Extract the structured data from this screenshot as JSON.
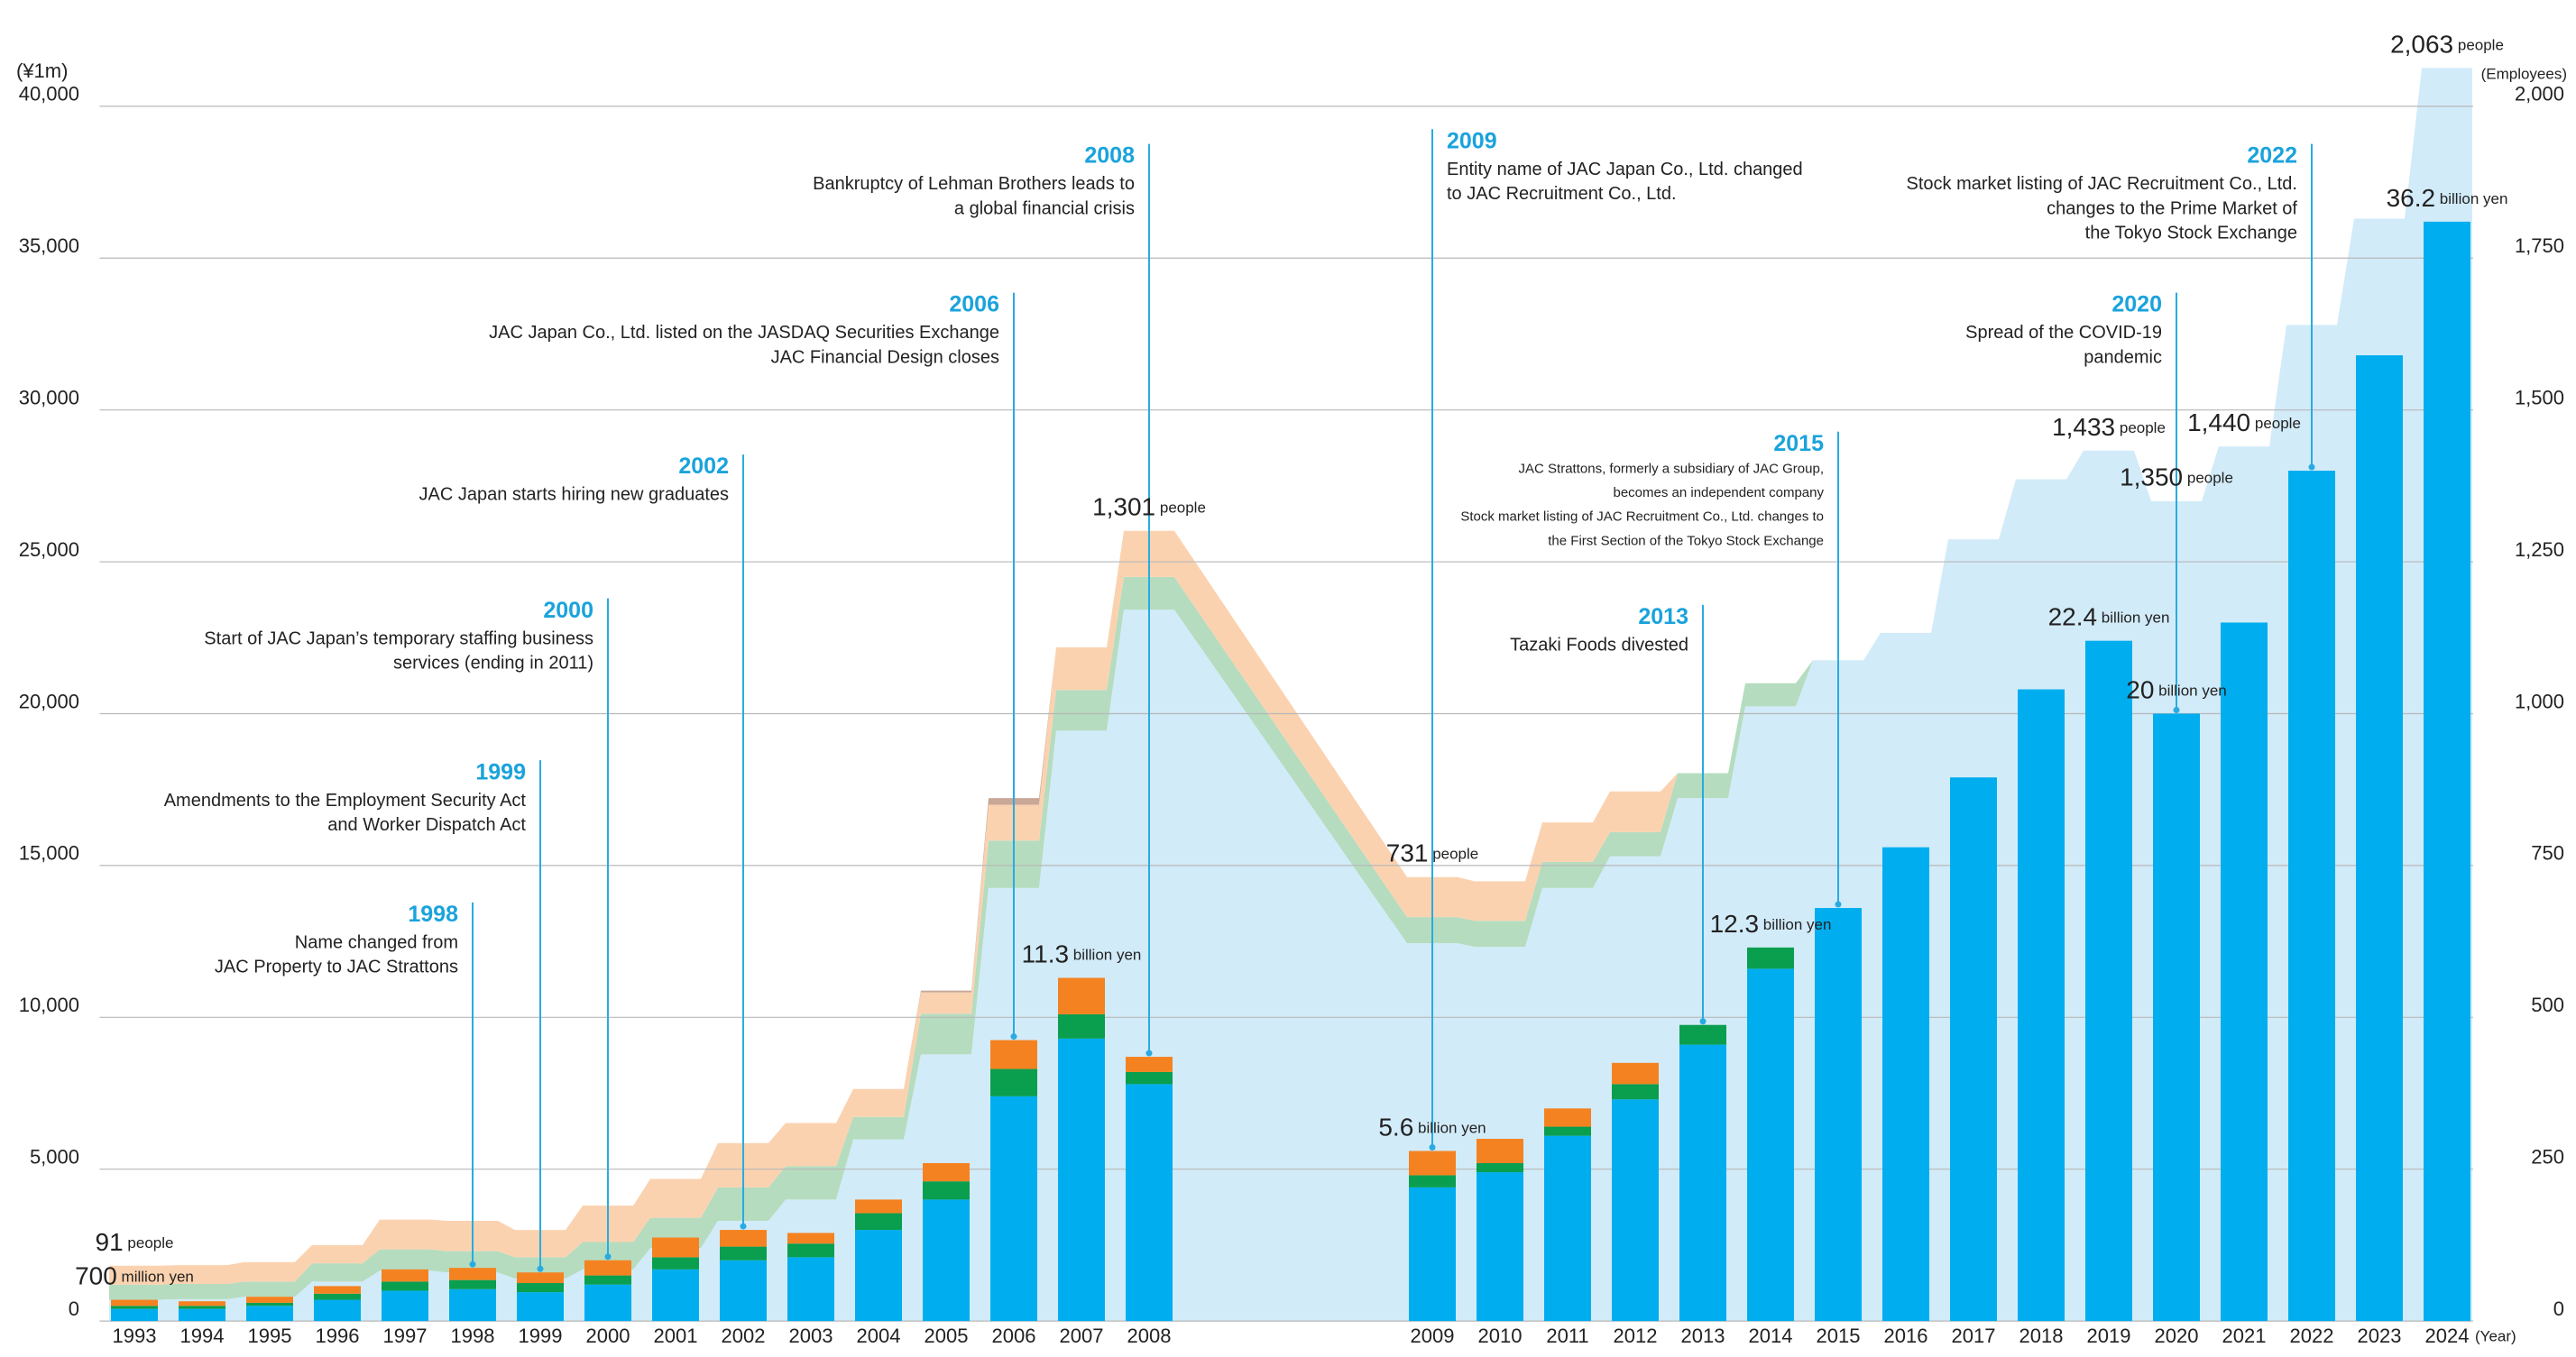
{
  "chart_data": {
    "type": "bar",
    "y_unit": "(¥1m)",
    "y2_unit": "(Employees)",
    "x_unit": "(Year)",
    "categories": [
      "1993",
      "1994",
      "1995",
      "1996",
      "1997",
      "1998",
      "1999",
      "2000",
      "2001",
      "2002",
      "2003",
      "2004",
      "2005",
      "2006",
      "2007",
      "2008",
      "2009",
      "2010",
      "2011",
      "2012",
      "2013",
      "2014",
      "2015",
      "2016",
      "2017",
      "2018",
      "2019",
      "2020",
      "2021",
      "2022",
      "2023",
      "2024"
    ],
    "series": [
      {
        "type": "bar",
        "color": "#00aeef",
        "values": [
          400,
          400,
          500,
          700,
          1000,
          1050,
          950,
          1200,
          1700,
          2000,
          2100,
          3000,
          4000,
          7400,
          9300,
          7800,
          4400,
          4900,
          6100,
          7300,
          9100,
          11600,
          13600,
          15600,
          17900,
          20800,
          22400,
          20000,
          23000,
          28000,
          31800,
          36200
        ]
      },
      {
        "type": "bar",
        "color": "#0a9e4f",
        "values": [
          100,
          100,
          100,
          200,
          300,
          300,
          300,
          300,
          400,
          450,
          450,
          550,
          600,
          900,
          800,
          400,
          400,
          300,
          300,
          500,
          650,
          700,
          0,
          0,
          0,
          0,
          0,
          0,
          0,
          0,
          0,
          0
        ]
      },
      {
        "type": "bar",
        "color": "#f58220",
        "values": [
          200,
          150,
          200,
          250,
          400,
          400,
          350,
          500,
          650,
          550,
          350,
          450,
          600,
          950,
          1200,
          500,
          800,
          800,
          600,
          700,
          0,
          0,
          0,
          0,
          0,
          0,
          0,
          0,
          0,
          0,
          0,
          0
        ]
      },
      {
        "type": "area",
        "axis": "y2",
        "color": "#d2ebf9",
        "values": [
          35,
          36,
          40,
          65,
          83,
          80,
          70,
          85,
          120,
          165,
          200,
          299,
          439,
          713,
          972,
          1171,
          622,
          616,
          713,
          765,
          861,
          1012,
          1088,
          1133,
          1287,
          1386,
          1433,
          1350,
          1440,
          1640,
          1815,
          2063
        ]
      },
      {
        "type": "area",
        "axis": "y2",
        "color": "#b5dcbf",
        "values": [
          25,
          25,
          25,
          30,
          35,
          35,
          35,
          45,
          50,
          55,
          55,
          37,
          67,
          78,
          67,
          54,
          43,
          43,
          43,
          40,
          41,
          38,
          0,
          0,
          0,
          0,
          0,
          0,
          0,
          0,
          0,
          0
        ]
      },
      {
        "type": "area",
        "axis": "y2",
        "color": "#fbd2b0",
        "values": [
          31,
          31,
          32,
          30,
          49,
          50,
          45,
          60,
          64,
          73,
          71,
          46,
          35,
          59,
          70,
          76,
          66,
          65,
          65,
          67,
          0,
          0,
          0,
          0,
          0,
          0,
          0,
          0,
          0,
          0,
          0,
          0
        ]
      },
      {
        "type": "area",
        "axis": "y2",
        "color": "#c9a898",
        "values": [
          0,
          0,
          0,
          0,
          0,
          0,
          0,
          0,
          0,
          0,
          0,
          0,
          3,
          11,
          0,
          0,
          0,
          0,
          0,
          0,
          0,
          0,
          0,
          0,
          0,
          0,
          0,
          0,
          0,
          0,
          0,
          0
        ]
      }
    ],
    "bar_labels": [
      "700 million yen",
      null,
      null,
      null,
      null,
      null,
      null,
      null,
      null,
      null,
      null,
      null,
      null,
      null,
      "11.3 billion yen",
      null,
      "5.6 billion yen",
      null,
      null,
      null,
      null,
      "12.3 billion yen",
      null,
      null,
      null,
      null,
      "22.4 billion yen",
      "20 billion yen",
      null,
      null,
      null,
      "36.2 billion yen"
    ],
    "area_labels": [
      "91 people",
      null,
      null,
      null,
      null,
      null,
      null,
      null,
      null,
      null,
      null,
      null,
      null,
      null,
      null,
      "1,301 people",
      "731 people",
      null,
      null,
      null,
      null,
      null,
      null,
      null,
      null,
      null,
      "1,433 people",
      "1,350 people",
      "1,440 people",
      null,
      null,
      "2,063 people"
    ],
    "ylim": [
      0,
      40000
    ],
    "yticks": [
      0,
      {
        "value": 5000,
        "label": "5,000"
      },
      {
        "value": 10000,
        "label": "10,000"
      },
      {
        "value": 15000,
        "label": "15,000"
      },
      {
        "value": 20000,
        "label": "20,000"
      },
      {
        "value": 25000,
        "label": "25,000"
      },
      {
        "value": 30000,
        "label": "30,000"
      },
      {
        "value": 35000,
        "label": "35,000"
      },
      {
        "value": 40000,
        "label": "40,000"
      }
    ],
    "y2lim": [
      0,
      2000
    ],
    "y2ticks": [
      0,
      250,
      500,
      750,
      {
        "value": 1000,
        "label": "1,000"
      },
      {
        "value": 1250,
        "label": "1,250"
      },
      {
        "value": 1500,
        "label": "1,500"
      },
      {
        "value": 1750,
        "label": "1,750"
      },
      {
        "value": 2000,
        "label": "2,000"
      }
    ],
    "grid": true,
    "annotations": [
      {
        "year": "1998",
        "lines": [
          "Name changed from",
          "JAC Property to JAC Strattons"
        ]
      },
      {
        "year": "1999",
        "lines": [
          "Amendments to the Employment Security Act",
          "and Worker Dispatch Act"
        ]
      },
      {
        "year": "2000",
        "lines": [
          "Start of JAC Japan’s temporary staffing business",
          "services (ending in 2011)"
        ]
      },
      {
        "year": "2002",
        "lines": [
          "JAC Japan starts hiring new graduates"
        ]
      },
      {
        "year": "2006",
        "lines": [
          "JAC Japan Co., Ltd. listed on the JASDAQ Securities Exchange",
          "JAC Financial Design closes"
        ]
      },
      {
        "year": "2008",
        "lines": [
          "Bankruptcy of Lehman Brothers leads to",
          "a global financial crisis"
        ]
      },
      {
        "year": "2009",
        "lines": [
          "Entity name of JAC Japan Co., Ltd. changed",
          "to JAC Recruitment Co., Ltd."
        ]
      },
      {
        "year": "2013",
        "lines": [
          "Tazaki Foods divested"
        ]
      },
      {
        "year": "2015",
        "lines": [
          "JAC Strattons, formerly a subsidiary of JAC Group,",
          "becomes an independent company",
          "Stock market listing of JAC Recruitment Co., Ltd. changes to",
          "the First Section of the Tokyo Stock Exchange"
        ]
      },
      {
        "year": "2020",
        "lines": [
          "Spread of the COVID-19",
          "pandemic"
        ]
      },
      {
        "year": "2022",
        "lines": [
          "Stock market listing of JAC Recruitment Co., Ltd.",
          "changes to the Prime Market of",
          "the Tokyo Stock Exchange"
        ]
      }
    ]
  }
}
